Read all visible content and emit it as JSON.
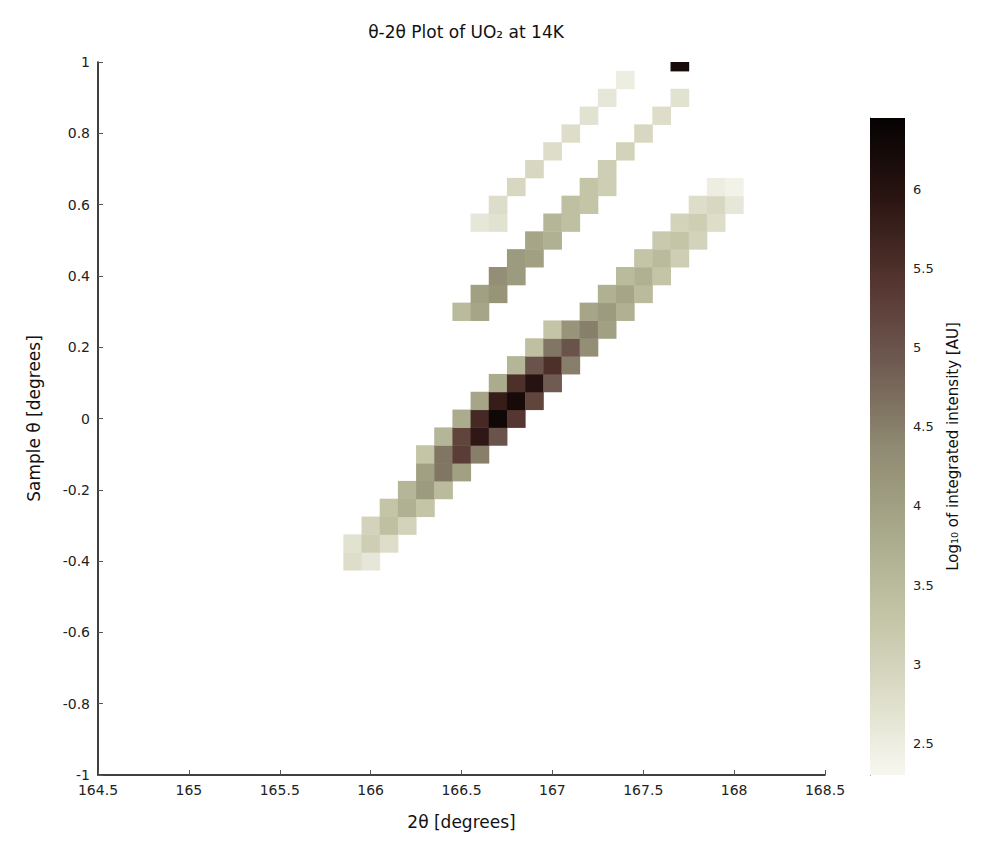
{
  "chart_data": {
    "type": "heatmap",
    "title": "θ-2θ Plot of UO₂ at 14K",
    "x_label": "2θ [degrees]",
    "y_label": "Sample θ [degrees]",
    "xlim": [
      164.5,
      168.5
    ],
    "xticks": [
      164.5,
      165,
      165.5,
      166,
      166.5,
      167,
      167.5,
      168,
      168.5
    ],
    "ylim": [
      -1,
      1
    ],
    "yticks": [
      -1,
      -0.8,
      -0.6,
      -0.4,
      -0.2,
      0,
      0.2,
      0.4,
      0.6,
      0.8,
      1
    ],
    "grid": false,
    "cell_size": [
      0.1,
      0.05
    ],
    "cells": [
      [
        165.9,
        -0.4,
        2.8
      ],
      [
        166.0,
        -0.4,
        2.6
      ],
      [
        165.9,
        -0.35,
        2.7
      ],
      [
        166.0,
        -0.35,
        3.1
      ],
      [
        166.1,
        -0.35,
        2.8
      ],
      [
        166.0,
        -0.3,
        3.0
      ],
      [
        166.1,
        -0.3,
        3.4
      ],
      [
        166.2,
        -0.3,
        3.0
      ],
      [
        166.1,
        -0.25,
        3.3
      ],
      [
        166.2,
        -0.25,
        3.7
      ],
      [
        166.3,
        -0.25,
        3.3
      ],
      [
        166.2,
        -0.2,
        3.6
      ],
      [
        166.3,
        -0.2,
        4.1
      ],
      [
        166.4,
        -0.2,
        3.5
      ],
      [
        166.3,
        -0.15,
        4.0
      ],
      [
        166.4,
        -0.15,
        4.6
      ],
      [
        166.5,
        -0.15,
        4.0
      ],
      [
        166.3,
        -0.1,
        3.3
      ],
      [
        166.4,
        -0.1,
        4.6
      ],
      [
        166.5,
        -0.1,
        5.3
      ],
      [
        166.6,
        -0.1,
        4.5
      ],
      [
        166.4,
        -0.05,
        3.6
      ],
      [
        166.5,
        -0.05,
        5.2
      ],
      [
        166.6,
        -0.05,
        5.9
      ],
      [
        166.7,
        -0.05,
        5.0
      ],
      [
        166.5,
        0,
        3.8
      ],
      [
        166.6,
        0,
        5.6
      ],
      [
        166.7,
        0,
        6.3
      ],
      [
        166.8,
        0,
        5.4
      ],
      [
        166.6,
        0.05,
        3.9
      ],
      [
        166.7,
        0.05,
        5.8
      ],
      [
        166.8,
        0.05,
        6.2
      ],
      [
        166.9,
        0.05,
        5.2
      ],
      [
        166.7,
        0.1,
        3.8
      ],
      [
        166.8,
        0.1,
        5.5
      ],
      [
        166.9,
        0.1,
        6.0
      ],
      [
        167.0,
        0.1,
        4.9
      ],
      [
        166.8,
        0.15,
        3.6
      ],
      [
        166.9,
        0.15,
        5.0
      ],
      [
        167.0,
        0.15,
        5.5
      ],
      [
        167.1,
        0.15,
        4.5
      ],
      [
        166.9,
        0.2,
        3.4
      ],
      [
        167.0,
        0.2,
        4.6
      ],
      [
        167.1,
        0.2,
        5.0
      ],
      [
        167.2,
        0.2,
        4.3
      ],
      [
        167.0,
        0.25,
        3.3
      ],
      [
        167.1,
        0.25,
        4.2
      ],
      [
        167.2,
        0.25,
        4.5
      ],
      [
        167.3,
        0.25,
        4.0
      ],
      [
        167.2,
        0.3,
        3.9
      ],
      [
        167.3,
        0.3,
        4.1
      ],
      [
        167.4,
        0.3,
        3.7
      ],
      [
        167.3,
        0.35,
        3.7
      ],
      [
        167.4,
        0.35,
        3.9
      ],
      [
        167.5,
        0.35,
        3.5
      ],
      [
        167.4,
        0.4,
        3.5
      ],
      [
        167.5,
        0.4,
        3.7
      ],
      [
        167.6,
        0.4,
        3.3
      ],
      [
        167.5,
        0.45,
        3.3
      ],
      [
        167.6,
        0.45,
        3.5
      ],
      [
        167.7,
        0.45,
        3.1
      ],
      [
        167.6,
        0.5,
        3.2
      ],
      [
        167.7,
        0.5,
        3.3
      ],
      [
        167.8,
        0.5,
        3.0
      ],
      [
        167.7,
        0.55,
        3.0
      ],
      [
        167.8,
        0.55,
        3.1
      ],
      [
        167.9,
        0.55,
        2.8
      ],
      [
        167.8,
        0.6,
        2.8
      ],
      [
        167.9,
        0.6,
        2.9
      ],
      [
        168.0,
        0.6,
        2.6
      ],
      [
        167.9,
        0.65,
        2.5
      ],
      [
        168.0,
        0.65,
        2.4
      ],
      [
        166.5,
        0.3,
        3.5
      ],
      [
        166.6,
        0.3,
        3.9
      ],
      [
        166.6,
        0.35,
        4.0
      ],
      [
        166.7,
        0.35,
        4.2
      ],
      [
        166.7,
        0.4,
        4.3
      ],
      [
        166.8,
        0.4,
        4.1
      ],
      [
        166.8,
        0.45,
        4.1
      ],
      [
        166.9,
        0.45,
        4.0
      ],
      [
        166.9,
        0.5,
        3.9
      ],
      [
        167.0,
        0.5,
        3.7
      ],
      [
        167.0,
        0.55,
        3.6
      ],
      [
        167.1,
        0.55,
        3.4
      ],
      [
        167.1,
        0.6,
        3.4
      ],
      [
        167.2,
        0.6,
        3.3
      ],
      [
        167.2,
        0.65,
        3.3
      ],
      [
        167.3,
        0.65,
        3.1
      ],
      [
        167.3,
        0.7,
        3.1
      ],
      [
        167.4,
        0.75,
        3.0
      ],
      [
        167.5,
        0.8,
        2.9
      ],
      [
        167.6,
        0.85,
        2.8
      ],
      [
        167.7,
        0.9,
        2.7
      ],
      [
        166.6,
        0.55,
        2.6
      ],
      [
        166.7,
        0.55,
        2.7
      ],
      [
        166.7,
        0.6,
        2.8
      ],
      [
        166.8,
        0.65,
        2.9
      ],
      [
        166.9,
        0.7,
        2.9
      ],
      [
        167.0,
        0.75,
        2.8
      ],
      [
        167.1,
        0.8,
        2.8
      ],
      [
        167.2,
        0.85,
        2.7
      ],
      [
        167.3,
        0.9,
        2.6
      ],
      [
        167.4,
        0.95,
        2.5
      ],
      [
        167.7,
        1,
        6.2
      ]
    ],
    "colorbar": {
      "label": "Log₁₀ of integrated intensity [AU]",
      "range": [
        2.3,
        6.45
      ],
      "ticks": [
        2.5,
        3,
        3.5,
        4,
        4.5,
        5,
        5.5,
        6
      ]
    }
  }
}
